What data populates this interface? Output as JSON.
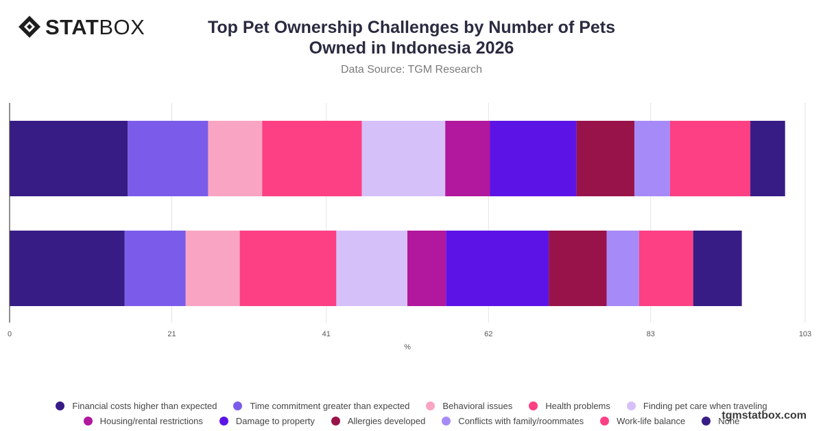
{
  "brand": {
    "name_bold": "STAT",
    "name_light": "BOX",
    "logo_icon": "diamond-logo-icon"
  },
  "header": {
    "title_line1": "Top Pet Ownership Challenges by Number of Pets",
    "title_line2": "Owned in Indonesia 2026",
    "subtitle": "Data Source: TGM Research"
  },
  "footer": {
    "site": "tgmstatbox.com"
  },
  "chart_data": {
    "type": "bar",
    "orientation": "horizontal",
    "stacked": true,
    "title": "Top Pet Ownership Challenges by Number of Pets Owned in Indonesia 2026",
    "subtitle": "Data Source: TGM Research",
    "xlabel": "%",
    "ylabel": "",
    "xlim": [
      0,
      103
    ],
    "x_ticks": [
      0,
      21,
      41,
      62,
      83,
      103
    ],
    "categories": [
      "",
      ""
    ],
    "grid": true,
    "legend_position": "bottom",
    "series": [
      {
        "name": "Financial costs higher than expected",
        "color": "#381c86",
        "values": [
          15.3,
          14.9
        ]
      },
      {
        "name": "Time commitment greater than expected",
        "color": "#7b5cea",
        "values": [
          10.4,
          7.9
        ]
      },
      {
        "name": "Behavioral issues",
        "color": "#f9a4c3",
        "values": [
          7.0,
          7.0
        ]
      },
      {
        "name": "Health problems",
        "color": "#fd3f83",
        "values": [
          12.9,
          12.5
        ]
      },
      {
        "name": "Finding pet care when traveling",
        "color": "#d5c0fa",
        "values": [
          10.8,
          9.2
        ]
      },
      {
        "name": "Housing/rental restrictions",
        "color": "#b1189e",
        "values": [
          5.8,
          5.0
        ]
      },
      {
        "name": "Damage to property",
        "color": "#5c14e6",
        "values": [
          11.2,
          13.3
        ]
      },
      {
        "name": "Allergies developed",
        "color": "#99134b",
        "values": [
          7.5,
          7.5
        ]
      },
      {
        "name": "Conflicts with family/roommates",
        "color": "#a68af7",
        "values": [
          4.6,
          4.2
        ]
      },
      {
        "name": "Work-life balance",
        "color": "#fd3f83",
        "values": [
          10.4,
          7.0
        ]
      },
      {
        "name": "None",
        "color": "#381c86",
        "values": [
          4.5,
          6.3
        ]
      }
    ]
  }
}
